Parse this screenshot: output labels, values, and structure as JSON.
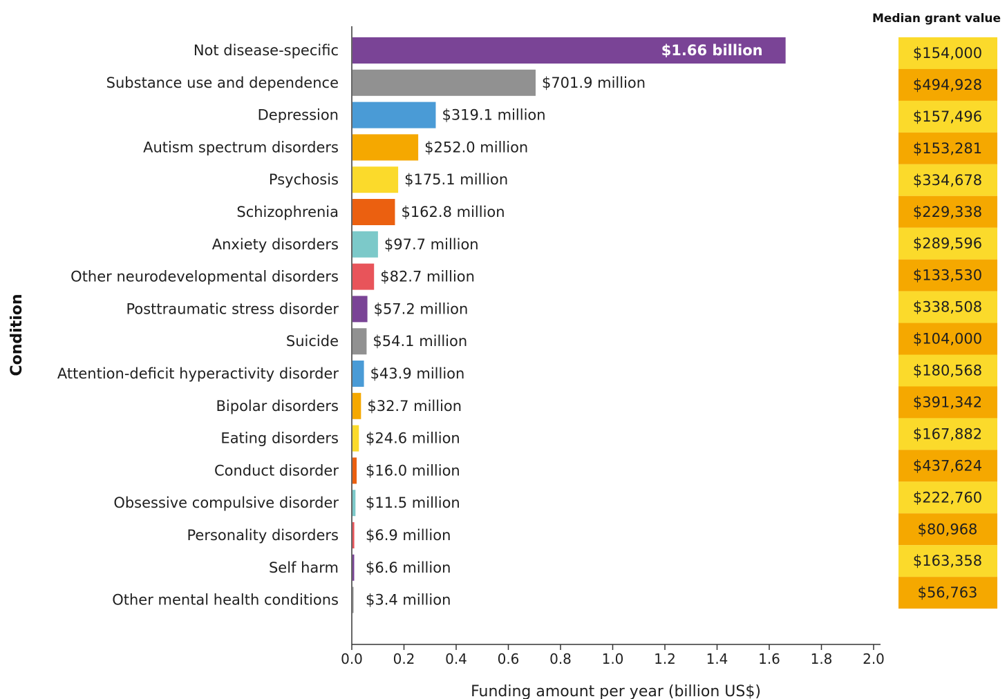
{
  "chart_data": {
    "type": "bar",
    "orientation": "horizontal",
    "categories": [
      "Not disease-specific",
      "Substance use and dependence",
      "Depression",
      "Autism spectrum disorders",
      "Psychosis",
      "Schizophrenia",
      "Anxiety disorders",
      "Other neurodevelopmental disorders",
      "Posttraumatic stress disorder",
      "Suicide",
      "Attention-deficit hyperactivity disorder",
      "Bipolar disorders",
      "Eating disorders",
      "Conduct disorder",
      "Obsessive compulsive disorder",
      "Personality disorders",
      "Self harm",
      "Other mental health conditions"
    ],
    "values": [
      1.66,
      0.7019,
      0.3191,
      0.252,
      0.1751,
      0.1628,
      0.0977,
      0.0827,
      0.0572,
      0.0541,
      0.0439,
      0.0327,
      0.0246,
      0.016,
      0.0115,
      0.0069,
      0.0066,
      0.0034
    ],
    "value_labels": [
      "$1.66 billion",
      "$701.9 million",
      "$319.1 million",
      "$252.0 million",
      "$175.1 million",
      "$162.8 million",
      "$97.7 million",
      "$82.7 million",
      "$57.2 million",
      "$54.1 million",
      "$43.9 million",
      "$32.7 million",
      "$24.6 million",
      "$16.0 million",
      "$11.5 million",
      "$6.9 million",
      "$6.6 million",
      "$3.4 million"
    ],
    "bar_colors": [
      "#7a4496",
      "#919191",
      "#4a9bd6",
      "#f5a800",
      "#fbda2b",
      "#eb6010",
      "#7cc9c9",
      "#e8545a",
      "#7a4496",
      "#919191",
      "#4a9bd6",
      "#f5a800",
      "#fbda2b",
      "#eb6010",
      "#7cc9c9",
      "#e8545a",
      "#7a4496",
      "#919191"
    ],
    "xlabel": "Funding amount per year (billion US$)",
    "ylabel": "Condition",
    "xlim": [
      0,
      2.0
    ],
    "xticks": [
      "0.0",
      "0.2",
      "0.4",
      "0.6",
      "0.8",
      "1.0",
      "1.2",
      "1.4",
      "1.6",
      "1.8",
      "2.0"
    ],
    "grid": false,
    "median_grant": {
      "title": "Median grant value",
      "values": [
        "$154,000",
        "$494,928",
        "$157,496",
        "$153,281",
        "$334,678",
        "$229,338",
        "$289,596",
        "$133,530",
        "$338,508",
        "$104,000",
        "$180,568",
        "$391,342",
        "$167,882",
        "$437,624",
        "$222,760",
        "$80,968",
        "$163,358",
        "$56,763"
      ],
      "colors": [
        "#fbda2b",
        "#f5a800"
      ]
    }
  }
}
